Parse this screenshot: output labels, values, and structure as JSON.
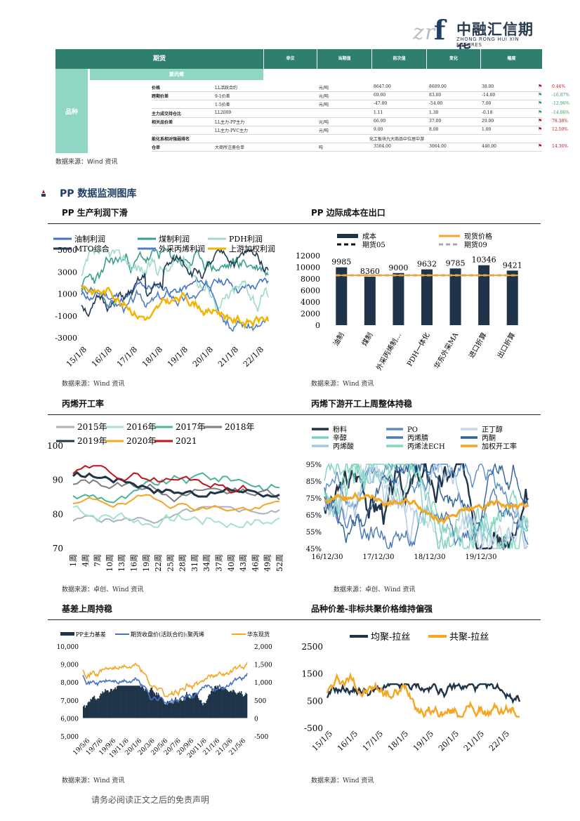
{
  "logo": {
    "cn": "中融汇信期货",
    "en": "ZHONG RONG HUI XIN FUTURES"
  },
  "table": {
    "headers": [
      "期货",
      "单位",
      "当期值",
      "前次值",
      "变化",
      "幅度"
    ],
    "left_label": "品种",
    "sub_header": "聚丙烯",
    "rows": [
      {
        "cat": "价格",
        "item": "LL活跃合约",
        "unit": "元/吨",
        "cur": "8647.00",
        "prev": "8609.00",
        "chg": "38.00",
        "pct": "0.44%",
        "dir": "up"
      },
      {
        "cat": "跨期价差",
        "item": "9-1价差",
        "unit": "元/吨",
        "cur": "69.00",
        "prev": "83.00",
        "chg": "-14.00",
        "pct": "-16.87%",
        "dir": "down"
      },
      {
        "cat": "",
        "item": "1-5价差",
        "unit": "元/吨",
        "cur": "-47.00",
        "prev": "-54.00",
        "chg": "7.00",
        "pct": "-12.96%",
        "dir": "down"
      },
      {
        "cat": "主力成交持仓比",
        "item": "LL2009",
        "unit": "",
        "cur": "1.11",
        "prev": "1.30",
        "chg": "-0.18",
        "pct": "-14.06%",
        "dir": "down"
      },
      {
        "cat": "相关品价差",
        "item": "LL主力-PP主力",
        "unit": "元/吨",
        "cur": "66.00",
        "prev": "37.00",
        "chg": "29.00",
        "pct": "78.38%",
        "dir": "up"
      },
      {
        "cat": "",
        "item": "LL主力-PVC主力",
        "unit": "元/吨",
        "cur": "9.00",
        "prev": "8.00",
        "chg": "1.00",
        "pct": "12.50%",
        "dir": "up"
      },
      {
        "cat": "能化系相对强弱排名",
        "item": "",
        "unit": "",
        "cur": "化工板块九大商品中位居中游",
        "prev": "",
        "chg": "",
        "pct": "",
        "dir": ""
      },
      {
        "cat": "仓单",
        "item": "大商所注册仓单",
        "unit": "吨",
        "cur": "3504.00",
        "prev": "3064.00",
        "chg": "440.00",
        "pct": "14.36%",
        "dir": "up"
      }
    ],
    "source": "数据来源：Wind 资讯"
  },
  "section_title": "PP 数据监测图库",
  "charts": {
    "c1": {
      "title": "PP 生产利润下滑",
      "source": "数据来源：Wind 资讯"
    },
    "c2": {
      "title": "PP 边际成本在出口",
      "source": "数据来源：Wind 资讯"
    },
    "c3": {
      "title": "丙烯开工率",
      "source": "数据来源：卓创、Wind 资讯"
    },
    "c4": {
      "title": "丙烯下游开工上周整体持稳",
      "source": "数据来源：卓创、Wind 资讯"
    },
    "c5": {
      "title": "基差上周持稳",
      "source": "数据来源：Wind 资讯"
    },
    "c6": {
      "title": "品种价差-非标共聚价格维持偏强",
      "source": "数据来源：Wind 资讯"
    }
  },
  "footer": "请务必阅读正文之后的免责声明",
  "chart_data": [
    {
      "id": "profit",
      "type": "line",
      "series": [
        {
          "name": "油制利润",
          "color": "#4472c4"
        },
        {
          "name": "煤制利润",
          "color": "#3a9e8f"
        },
        {
          "name": "PDH利润",
          "color": "#9fdcc8"
        },
        {
          "name": "MTO综合",
          "color": "#233a52"
        },
        {
          "name": "外采丙烯利润",
          "color": "#4f7fc0"
        },
        {
          "name": "上游加权利润",
          "color": "#f2b400"
        }
      ],
      "x_ticks": [
        "15/1/8",
        "16/1/8",
        "17/1/8",
        "18/1/8",
        "19/1/8",
        "20/1/8",
        "21/1/8",
        "22/1/8"
      ],
      "y_ticks": [
        5000,
        3000,
        1000,
        -1000,
        -3000
      ],
      "ylim": [
        -3000,
        5000
      ]
    },
    {
      "id": "cost",
      "type": "bar",
      "categories": [
        "油制",
        "煤制",
        "外采丙烯制…",
        "PDH一体化",
        "华东外采MA",
        "进口折算",
        "出口折算"
      ],
      "values": [
        9985,
        8360,
        9000,
        9632,
        9785,
        10346,
        9421
      ],
      "series_names": [
        "成本",
        "现货价格",
        "期货05",
        "期货09"
      ],
      "spot": 8600,
      "y_ticks": [
        12000,
        10000,
        8000,
        6000,
        4000,
        2000,
        0
      ],
      "ylim": [
        0,
        12000
      ],
      "colors": {
        "bar": "#1f3448",
        "spot": "#f5a623",
        "f05": "#111111",
        "f09": "#aaaaaa"
      }
    },
    {
      "id": "propylene_rate",
      "type": "line",
      "series": [
        {
          "name": "2015年",
          "color": "#a6b4c2"
        },
        {
          "name": "2016年",
          "color": "#a8e0cf"
        },
        {
          "name": "2017年",
          "color": "#4cb39c"
        },
        {
          "name": "2018年",
          "color": "#7f7f7f"
        },
        {
          "name": "2019年",
          "color": "#1f3448"
        },
        {
          "name": "2020年",
          "color": "#f5a623"
        },
        {
          "name": "2021",
          "color": "#c0141b"
        }
      ],
      "x_ticks": [
        "1周",
        "4周",
        "7周",
        "10周",
        "13周",
        "16周",
        "19周",
        "22周",
        "25周",
        "28周",
        "31周",
        "34周",
        "37周",
        "40周",
        "43周",
        "46周",
        "49周",
        "52周"
      ],
      "y_ticks": [
        100,
        90,
        80,
        70
      ],
      "ylim": [
        70,
        100
      ]
    },
    {
      "id": "downstream",
      "type": "line",
      "series": [
        {
          "name": "粉料",
          "color": "#1f3448"
        },
        {
          "name": "PO",
          "color": "#5b8ec9"
        },
        {
          "name": "正丁醇",
          "color": "#c9d9e8"
        },
        {
          "name": "辛醇",
          "color": "#7fd1bf"
        },
        {
          "name": "丙烯腈",
          "color": "#4d7ab5"
        },
        {
          "name": "丙酮",
          "color": "#2f5f99"
        },
        {
          "name": "丙烯酸",
          "color": "#a9c6e6"
        },
        {
          "name": "丙烯法ECH",
          "color": "#7fd8c0"
        },
        {
          "name": "加权开工率",
          "color": "#f5a623"
        }
      ],
      "x_ticks": [
        "16/12/30",
        "17/12/30",
        "18/12/30",
        "19/12/30"
      ],
      "y_ticks": [
        "95%",
        "85%",
        "75%",
        "65%",
        "55%",
        "45%"
      ],
      "ylim": [
        45,
        95
      ]
    },
    {
      "id": "basis",
      "type": "area",
      "series": [
        {
          "name": "PP主力基差",
          "color": "#1f3448"
        },
        {
          "name": "期货收盘价(活跃合约):聚丙烯",
          "color": "#4472c4"
        },
        {
          "name": "华东现货",
          "color": "#f5a623"
        }
      ],
      "x_ticks": [
        "19/5/6",
        "19/7/6",
        "19/9/6",
        "19/11/6",
        "20/1/6",
        "20/3/6",
        "20/5/6",
        "20/7/6",
        "20/9/6",
        "20/11/6",
        "21/1/6",
        "21/3/6",
        "21/5/6"
      ],
      "y_left": [
        "10,000",
        "9,000",
        "8,000",
        "7,000",
        "6,000",
        "5,000"
      ],
      "y_right": [
        "2,000",
        "1,500",
        "1,000",
        "500",
        "0",
        "-500"
      ],
      "ylim_left": [
        5000,
        10000
      ],
      "ylim_right": [
        -500,
        2000
      ]
    },
    {
      "id": "spread",
      "type": "line",
      "series": [
        {
          "name": "均聚-拉丝",
          "color": "#1f3448"
        },
        {
          "name": "共聚-拉丝",
          "color": "#f5a623"
        }
      ],
      "x_ticks": [
        "15/1/5",
        "16/1/5",
        "17/1/5",
        "18/1/5",
        "19/1/5",
        "20/1/5",
        "21/1/5",
        "22/1/5"
      ],
      "y_ticks": [
        2500,
        1500,
        500,
        -500
      ],
      "ylim": [
        -500,
        2500
      ]
    }
  ]
}
